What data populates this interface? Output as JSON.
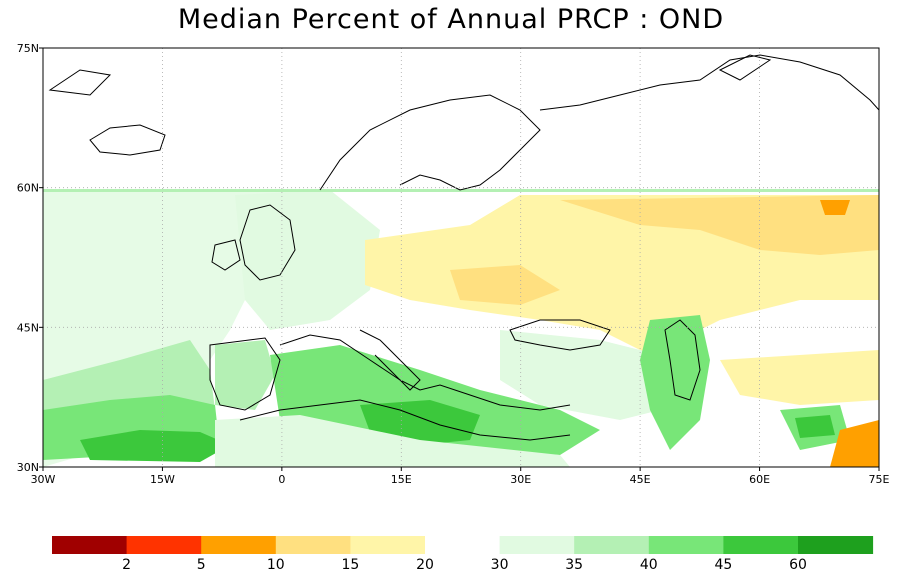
{
  "title": "Median Percent of Annual PRCP   :   OND",
  "map": {
    "lon_range": [
      -30,
      75
    ],
    "lat_range": [
      30,
      75
    ],
    "lon_ticks": [
      {
        "value": -30,
        "label": "30W"
      },
      {
        "value": -15,
        "label": "15W"
      },
      {
        "value": 0,
        "label": "0"
      },
      {
        "value": 15,
        "label": "15E"
      },
      {
        "value": 30,
        "label": "30E"
      },
      {
        "value": 45,
        "label": "45E"
      },
      {
        "value": 60,
        "label": "60E"
      },
      {
        "value": 75,
        "label": "75E"
      }
    ],
    "lat_ticks": [
      {
        "value": 30,
        "label": "30N"
      },
      {
        "value": 45,
        "label": "45N"
      },
      {
        "value": 60,
        "label": "60N"
      },
      {
        "value": 75,
        "label": "75N"
      }
    ],
    "data_north_limit_lat": 60,
    "colors": {
      "ocean": "#ffffff",
      "coast": "#000000",
      "borders": "#999999",
      "grid": "#aaaaaa"
    }
  },
  "colorbar": {
    "bins": [
      {
        "color": "#a00000"
      },
      {
        "color": "#ff3300"
      },
      {
        "color": "#ffa000"
      },
      {
        "color": "#ffe080"
      },
      {
        "color": "#fff5a8"
      },
      {
        "color": "#ffffff"
      },
      {
        "color": "#e1fae1"
      },
      {
        "color": "#b4f0b4"
      },
      {
        "color": "#78e678"
      },
      {
        "color": "#3cc83c"
      },
      {
        "color": "#1ea01e"
      }
    ],
    "labels": [
      "2",
      "5",
      "10",
      "15",
      "20",
      "30",
      "35",
      "40",
      "45",
      "60"
    ]
  }
}
